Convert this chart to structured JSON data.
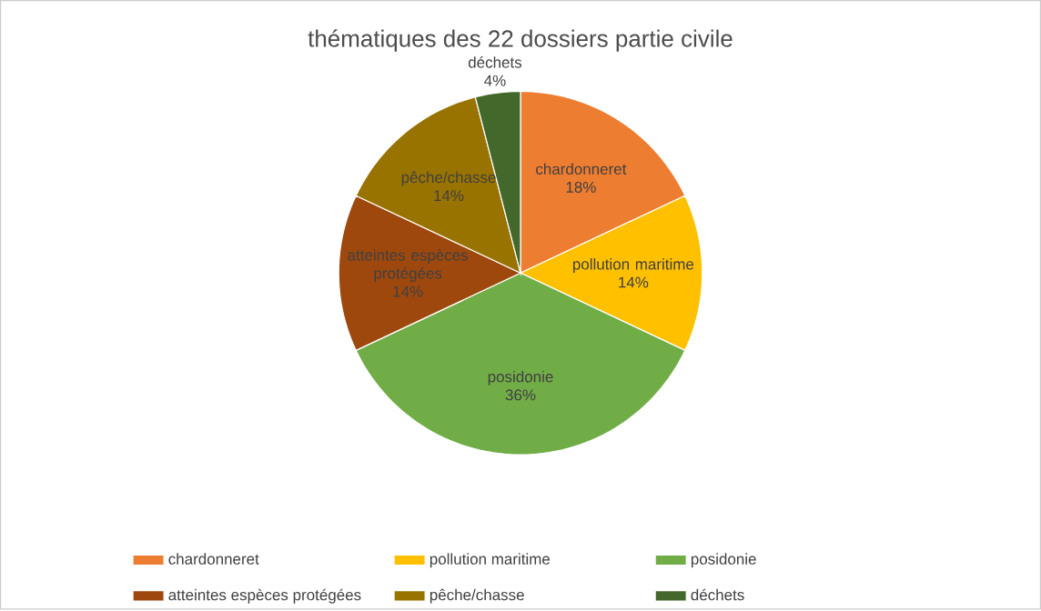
{
  "chart_data": {
    "type": "pie",
    "title": "thématiques des 22 dossiers partie civile",
    "categories": [
      "chardonneret",
      "pollution maritime",
      "posidonie",
      "atteintes espèces protégées",
      "pêche/chasse",
      "déchets"
    ],
    "values": [
      18,
      14,
      36,
      14,
      14,
      4
    ],
    "colors": [
      "#ed7d31",
      "#ffc000",
      "#70ad47",
      "#9e480e",
      "#997300",
      "#43682b"
    ],
    "value_labels": [
      "18%",
      "14%",
      "36%",
      "14%",
      "14%",
      "4%"
    ],
    "legend": "bottom"
  }
}
